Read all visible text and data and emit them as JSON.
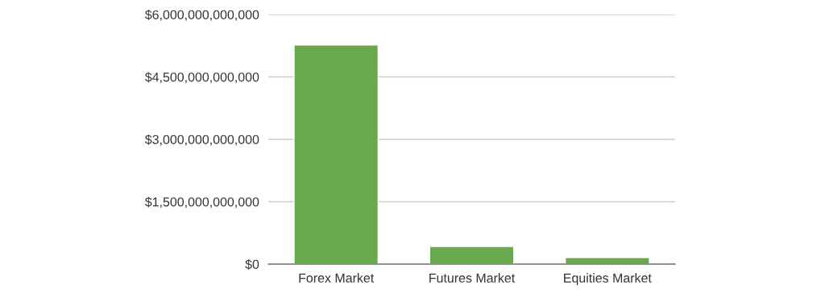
{
  "chart_data": {
    "type": "bar",
    "categories": [
      "Forex Market",
      "Futures Market",
      "Equities Market"
    ],
    "values": [
      5270000000000,
      425000000000,
      160000000000
    ],
    "color": "#6aa84f",
    "ylim": [
      0,
      6000000000000
    ],
    "yticks": [
      {
        "value": 0,
        "label": "$0"
      },
      {
        "value": 1500000000000,
        "label": "$1,500,000,000,000"
      },
      {
        "value": 3000000000000,
        "label": "$3,000,000,000,000"
      },
      {
        "value": 4500000000000,
        "label": "$4,500,000,000,000"
      },
      {
        "value": 6000000000000,
        "label": "$6,000,000,000,000"
      }
    ],
    "grid": "y",
    "legend": false
  }
}
